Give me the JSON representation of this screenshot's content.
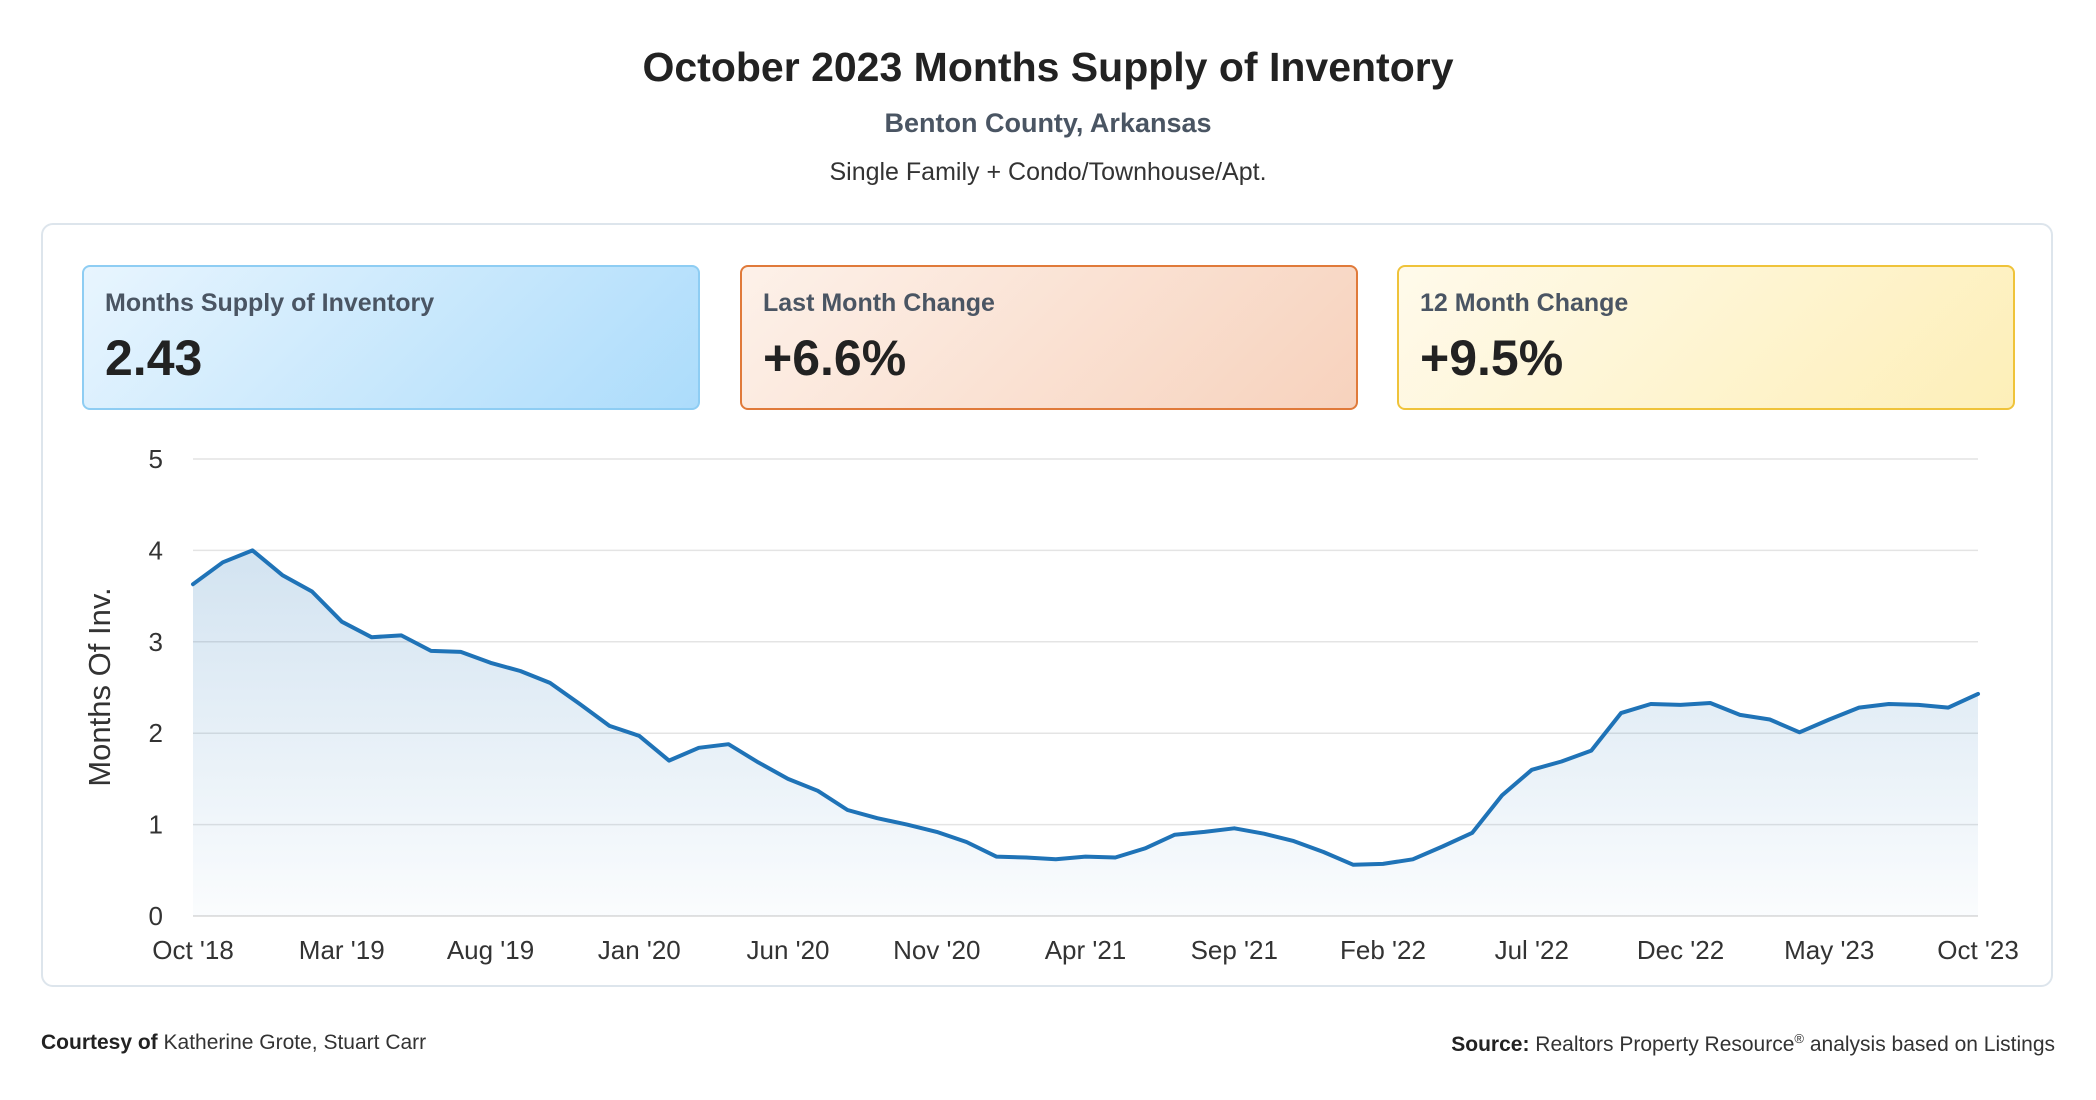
{
  "header": {
    "title": "October 2023 Months Supply of Inventory",
    "subtitle": "Benton County, Arkansas",
    "property_types": "Single Family + Condo/Townhouse/Apt."
  },
  "kpis": [
    {
      "label": "Months Supply of Inventory",
      "value": "2.43",
      "color": "#8ecdf3"
    },
    {
      "label": "Last Month Change",
      "value": "+6.6%",
      "color": "#e07a3a"
    },
    {
      "label": "12 Month Change",
      "value": "+9.5%",
      "color": "#efc33a"
    }
  ],
  "footer": {
    "courtesy_label": "Courtesy of",
    "courtesy_names": "Katherine Grote, Stuart Carr",
    "source_label": "Source:",
    "source_text_1": "Realtors Property Resource",
    "source_sup": "®",
    "source_text_2": "analysis based on Listings"
  },
  "chart_data": {
    "type": "area",
    "ylabel": "Months Of Inv.",
    "ylim": [
      0,
      5
    ],
    "yticks": [
      0,
      1,
      2,
      3,
      4,
      5
    ],
    "xtick_labels": [
      "Oct '18",
      "Mar '19",
      "Aug '19",
      "Jan '20",
      "Jun '20",
      "Nov '20",
      "Apr '21",
      "Sep '21",
      "Feb '22",
      "Jul '22",
      "Dec '22",
      "May '23",
      "Oct '23"
    ],
    "grid": true,
    "line_color": "#1f73b7",
    "fill_color": "#1f73b7",
    "x": [
      "Oct '18",
      "Nov '18",
      "Dec '18",
      "Jan '19",
      "Feb '19",
      "Mar '19",
      "Apr '19",
      "May '19",
      "Jun '19",
      "Jul '19",
      "Aug '19",
      "Sep '19",
      "Oct '19",
      "Nov '19",
      "Dec '19",
      "Jan '20",
      "Feb '20",
      "Mar '20",
      "Apr '20",
      "May '20",
      "Jun '20",
      "Jul '20",
      "Aug '20",
      "Sep '20",
      "Oct '20",
      "Nov '20",
      "Dec '20",
      "Jan '21",
      "Feb '21",
      "Mar '21",
      "Apr '21",
      "May '21",
      "Jun '21",
      "Jul '21",
      "Aug '21",
      "Sep '21",
      "Oct '21",
      "Nov '21",
      "Dec '21",
      "Jan '22",
      "Feb '22",
      "Mar '22",
      "Apr '22",
      "May '22",
      "Jun '22",
      "Jul '22",
      "Aug '22",
      "Sep '22",
      "Oct '22",
      "Nov '22",
      "Dec '22",
      "Jan '23",
      "Feb '23",
      "Mar '23",
      "Apr '23",
      "May '23",
      "Jun '23",
      "Jul '23",
      "Aug '23",
      "Sep '23",
      "Oct '23"
    ],
    "values": [
      3.63,
      3.87,
      4.0,
      3.73,
      3.55,
      3.22,
      3.05,
      3.07,
      2.9,
      2.89,
      2.77,
      2.68,
      2.55,
      2.32,
      2.08,
      1.97,
      1.7,
      1.84,
      1.88,
      1.68,
      1.5,
      1.37,
      1.16,
      1.07,
      1.0,
      0.92,
      0.81,
      0.65,
      0.64,
      0.62,
      0.65,
      0.64,
      0.74,
      0.89,
      0.92,
      0.96,
      0.9,
      0.82,
      0.7,
      0.56,
      0.57,
      0.62,
      0.76,
      0.91,
      1.32,
      1.6,
      1.69,
      1.81,
      2.22,
      2.32,
      2.31,
      2.33,
      2.2,
      2.15,
      2.01,
      2.15,
      2.28,
      2.32,
      2.31,
      2.28,
      2.43
    ]
  }
}
